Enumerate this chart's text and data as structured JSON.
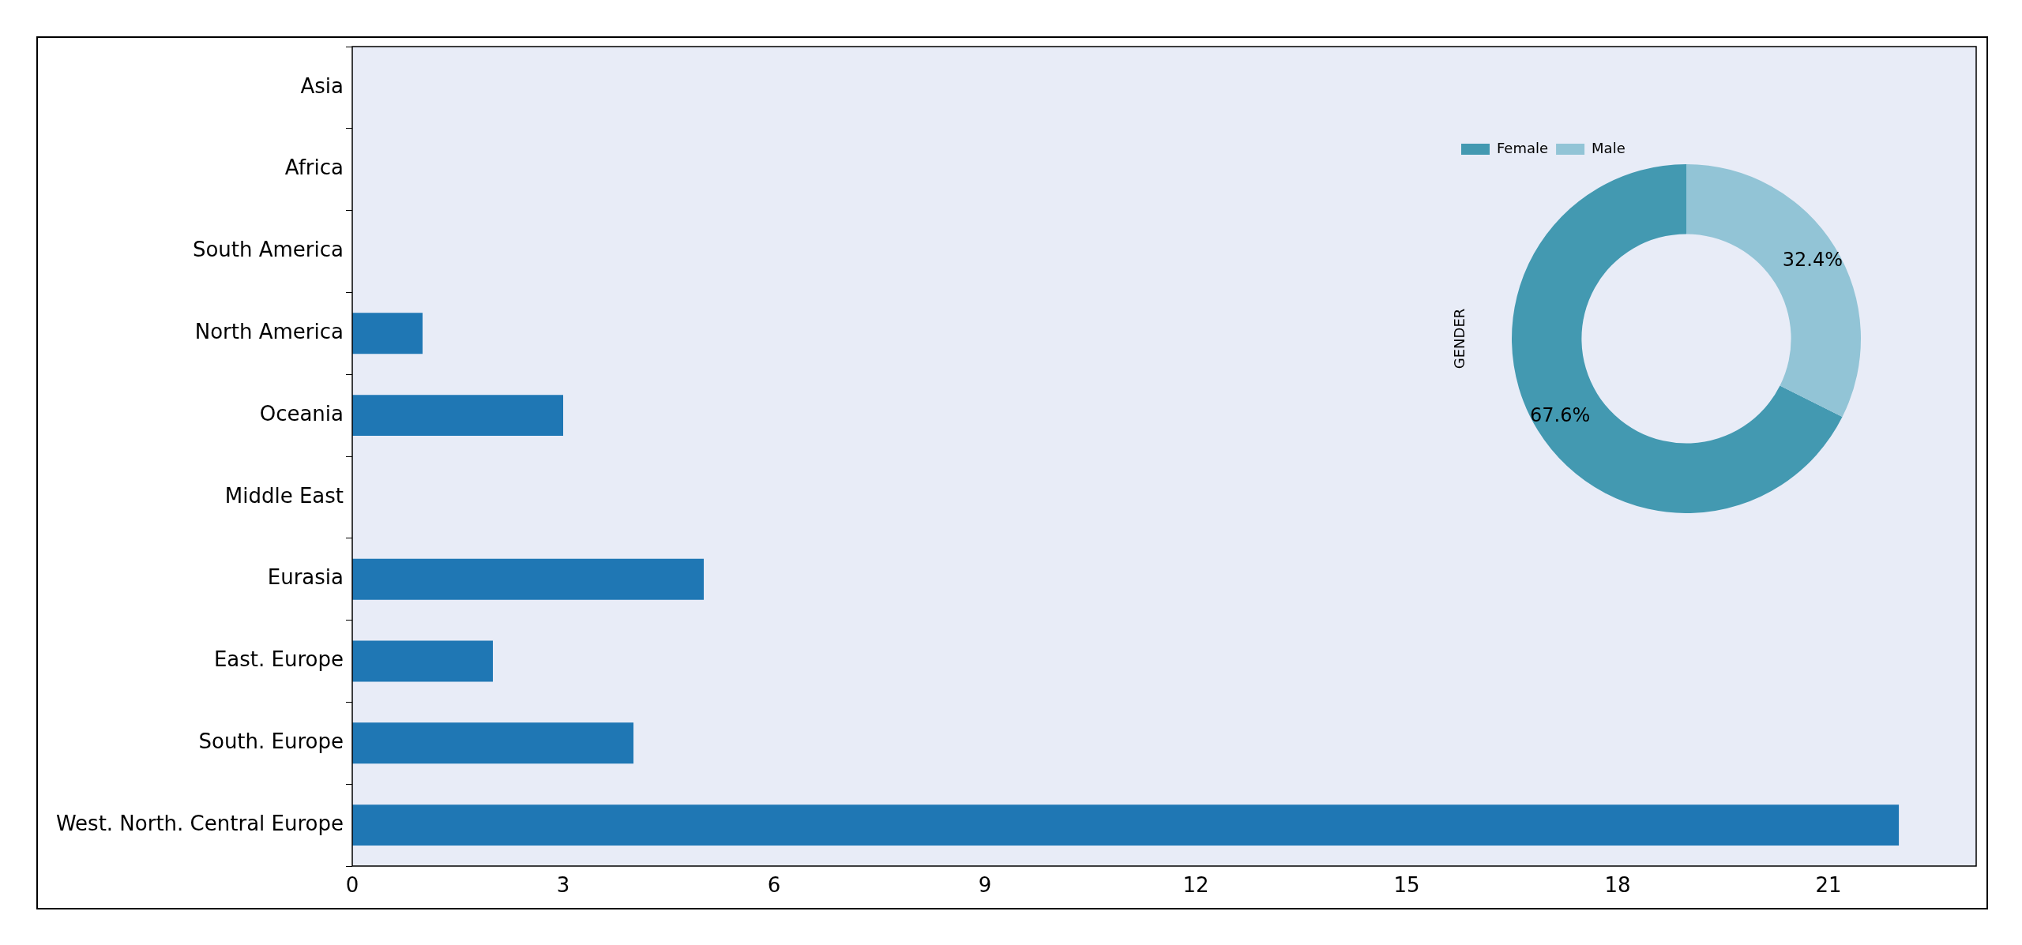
{
  "chart_data": [
    {
      "type": "bar",
      "orientation": "horizontal",
      "categories": [
        "Asia",
        "Africa",
        "South America",
        "North America",
        "Oceania",
        "Middle East",
        "Eurasia",
        "East. Europe",
        "South. Europe",
        "West. North. Central Europe"
      ],
      "values": [
        0,
        0,
        0,
        1,
        3,
        0,
        5,
        2,
        4,
        22
      ],
      "color": "#1f77b4",
      "xlim": [
        0,
        23.1
      ],
      "xticks": [
        0,
        3,
        6,
        9,
        12,
        15,
        18,
        21
      ],
      "grid": false,
      "legend": false
    },
    {
      "type": "donut",
      "ylabel": "GENDER",
      "categories": [
        "Female",
        "Male"
      ],
      "values": [
        67.6,
        32.4
      ],
      "colors": [
        "#4399b1",
        "#92c4d6"
      ],
      "value_labels": [
        "67.6%",
        "32.4%"
      ],
      "legend": "top left"
    }
  ]
}
